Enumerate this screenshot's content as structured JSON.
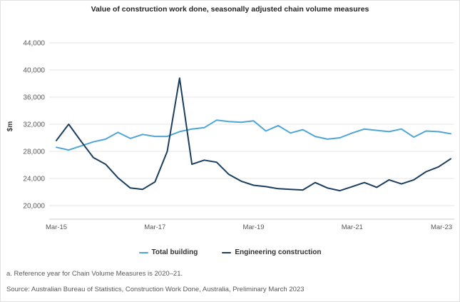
{
  "title": "Value of construction work done, seasonally adjusted chain volume measures",
  "footnote": "a. Reference year for Chain Volume Measures is 2020–21.",
  "source": "Source: Australian Bureau of Statistics, Construction Work Done, Australia, Preliminary March 2023",
  "colors": {
    "total_building": "#4FA5D5",
    "engineering_construction": "#1B3E5F",
    "gridline": "#e6e6e6",
    "axis_line": "#cccccc",
    "tick_text": "#595959",
    "title_text": "#262626"
  },
  "chart_data": {
    "type": "line",
    "title": "Value of construction work done, seasonally adjusted chain volume measures",
    "xlabel": "",
    "ylabel": "$m",
    "ylim": [
      18000,
      44000
    ],
    "grid": "horizontal",
    "legend_position": "bottom",
    "yticks": [
      20000,
      24000,
      28000,
      32000,
      36000,
      40000,
      44000
    ],
    "ytick_labels": [
      "20,000",
      "24,000",
      "28,000",
      "32,000",
      "36,000",
      "40,000",
      "44,000"
    ],
    "tick_indices": [
      0,
      8,
      16,
      24,
      32
    ],
    "tick_labels": [
      "Mar-15",
      "Mar-17",
      "Mar-19",
      "Mar-21",
      "Mar-23"
    ],
    "categories": [
      "Mar-15",
      "Jun-15",
      "Sep-15",
      "Dec-15",
      "Mar-16",
      "Jun-16",
      "Sep-16",
      "Dec-16",
      "Mar-17",
      "Jun-17",
      "Sep-17",
      "Dec-17",
      "Mar-18",
      "Jun-18",
      "Sep-18",
      "Dec-18",
      "Mar-19",
      "Jun-19",
      "Sep-19",
      "Dec-19",
      "Mar-20",
      "Jun-20",
      "Sep-20",
      "Dec-20",
      "Mar-21",
      "Jun-21",
      "Sep-21",
      "Dec-21",
      "Mar-22",
      "Jun-22",
      "Sep-22",
      "Dec-22",
      "Mar-23"
    ],
    "series": [
      {
        "name": "Total building",
        "color": "#4FA5D5",
        "values": [
          28600,
          28200,
          28800,
          29400,
          29800,
          30800,
          29900,
          30500,
          30200,
          30200,
          30900,
          31300,
          31500,
          32600,
          32400,
          32300,
          32500,
          31000,
          31800,
          30700,
          31200,
          30200,
          29800,
          30000,
          30700,
          31300,
          31100,
          30900,
          31300,
          30100,
          31000,
          30900,
          30600
        ]
      },
      {
        "name": "Engineering construction",
        "color": "#1B3E5F",
        "values": [
          29600,
          32000,
          29500,
          27100,
          26100,
          24100,
          22600,
          22400,
          23500,
          28000,
          38800,
          26100,
          26700,
          26400,
          24600,
          23600,
          23000,
          22800,
          22500,
          22400,
          22300,
          23400,
          22600,
          22200,
          22800,
          23400,
          22700,
          23800,
          23200,
          23800,
          25000,
          25700,
          26900
        ]
      }
    ]
  }
}
